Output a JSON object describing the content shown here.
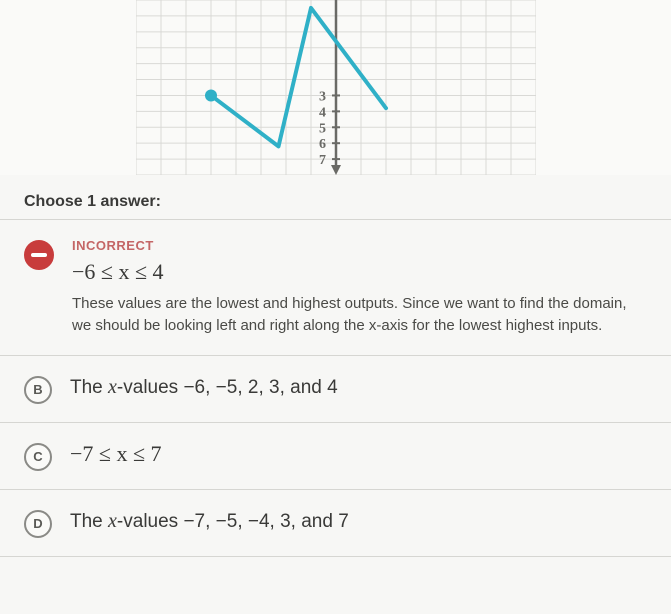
{
  "graph": {
    "grid_color": "#d9d9d6",
    "axis_color": "#6a6a66",
    "line_color": "#2fb0c7",
    "dot_color": "#2fb0c7",
    "y_ticks": [
      "3",
      "4",
      "5",
      "6",
      "7"
    ],
    "line_points": [
      [
        -5,
        -3
      ],
      [
        -2.3,
        -6.2
      ],
      [
        -1,
        2.5
      ],
      [
        2,
        -3.8
      ]
    ],
    "endpoint_dot": [
      -5,
      -3
    ],
    "view_xmin": -8,
    "view_xmax": 8,
    "view_ymin": -8,
    "view_ymax": 3
  },
  "prompt": "Choose 1 answer:",
  "answers": {
    "a": {
      "flag": "INCORRECT",
      "formula": "−6 ≤ x ≤ 4",
      "explanation": "These values are the lowest and highest outputs. Since we want to find the domain, we should be looking left and right along the x-axis for the lowest highest inputs."
    },
    "b": {
      "letter": "B",
      "prefix": "The ",
      "var": "x",
      "suffix": "-values −6, −5, 2, 3, and 4"
    },
    "c": {
      "letter": "C",
      "formula": "−7 ≤ x ≤ 7"
    },
    "d": {
      "letter": "D",
      "prefix": "The ",
      "var": "x",
      "suffix": "-values −7, −5, −4, 3, and 7"
    }
  }
}
